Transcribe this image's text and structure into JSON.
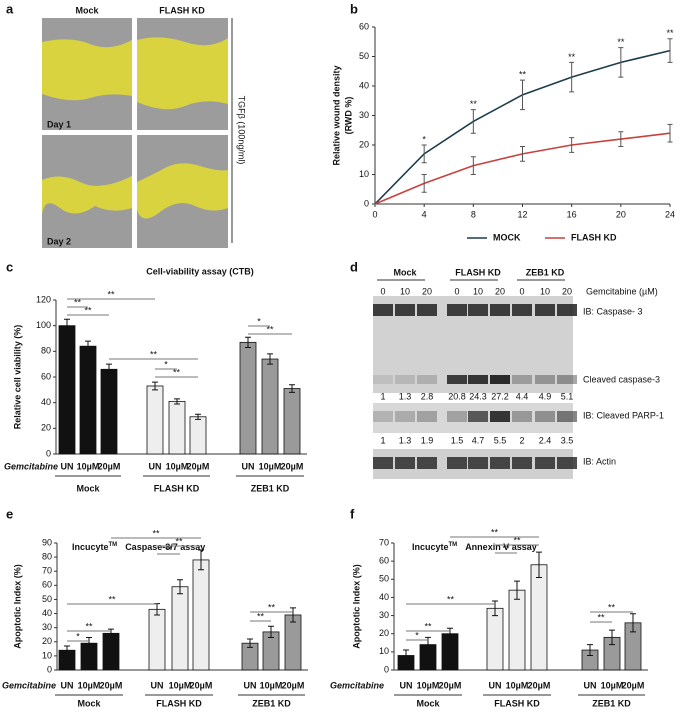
{
  "panel_labels": [
    "a",
    "b",
    "c",
    "d",
    "e",
    "f"
  ],
  "wound_assay": {
    "columns": [
      "Mock",
      "FLASH KD"
    ],
    "rows": [
      "Day 1",
      "Day 2"
    ],
    "treatment": "TGFβ (100ng/ml)"
  },
  "blot": {
    "groups": [
      "Mock",
      "FLASH KD",
      "ZEB1 KD"
    ],
    "doses": [
      "0",
      "10",
      "20"
    ],
    "treatment": "Gemcitabine (µM)",
    "labels": [
      "IB: Caspase- 3",
      "Cleaved caspase-3",
      "IB: Cleaved PARP-1",
      "IB: Actin"
    ],
    "quant": [
      [
        1,
        1.3,
        2.8,
        20.8,
        24.3,
        27.2,
        4.4,
        4.9,
        5.1
      ],
      [
        1,
        1.3,
        1.9,
        1.5,
        4.7,
        5.5,
        2,
        2.4,
        3.5
      ]
    ]
  },
  "chart_data": [
    {
      "type": "line",
      "ylabel": "Relative wound density",
      "ylabel_unit": "(RWD %)",
      "x": [
        0,
        4,
        8,
        12,
        16,
        20,
        24
      ],
      "xlim": [
        0,
        24
      ],
      "xticks": [
        0,
        4,
        8,
        12,
        16,
        20,
        24
      ],
      "ylim": [
        0,
        60
      ],
      "yticks": [
        0,
        10,
        20,
        30,
        40,
        50,
        60
      ],
      "series": [
        {
          "name": "MOCK",
          "color": "#1d3d4c",
          "values": [
            0,
            17,
            28,
            37,
            43,
            48,
            52
          ],
          "errors": [
            null,
            3,
            4,
            5,
            5,
            5,
            4
          ]
        },
        {
          "name": "FLASH KD",
          "color": "#c8413c",
          "values": [
            0,
            7,
            13,
            17,
            20,
            22,
            24
          ],
          "errors": [
            null,
            3,
            3,
            2.5,
            2.5,
            2.5,
            3
          ]
        }
      ],
      "annotations": [
        "*",
        "**",
        "**",
        "**",
        "**",
        "**"
      ]
    },
    {
      "type": "bar",
      "title": "Cell-viability assay (CTB)",
      "ylabel": "Relative cell viability (%)",
      "row_label": "Gemcitabine",
      "categories": [
        "UN",
        "10µM",
        "20µM"
      ],
      "ylim": [
        0,
        120
      ],
      "yticks": [
        0,
        20,
        40,
        60,
        80,
        100,
        120
      ],
      "series": [
        {
          "name": "Mock",
          "color": "#111111",
          "values": [
            100,
            84,
            66
          ],
          "errors": [
            5,
            4,
            4
          ]
        },
        {
          "name": "FLASH KD",
          "color": "#eeeeee",
          "values": [
            53,
            41,
            29
          ],
          "errors": [
            3,
            2,
            2
          ]
        },
        {
          "name": "ZEB1 KD",
          "color": "#9a9a9a",
          "values": [
            87,
            74,
            51
          ],
          "errors": [
            4,
            4,
            3
          ]
        }
      ],
      "significance": [
        "**",
        "**",
        "**",
        "**",
        "*",
        "**",
        "*",
        "**"
      ]
    },
    {
      "type": "bar",
      "title": "Incucyte",
      "title_sup": "TM",
      "title_2": "Caspase-3/7 assay",
      "ylabel": "Apoptotic Index (%)",
      "row_label": "Gemcitabine",
      "categories": [
        "UN",
        "10µM",
        "20µM"
      ],
      "ylim": [
        0,
        90
      ],
      "yticks": [
        0,
        10,
        20,
        30,
        40,
        50,
        60,
        70,
        80,
        90
      ],
      "series": [
        {
          "name": "Mock",
          "color": "#111111",
          "values": [
            14,
            19,
            26
          ],
          "errors": [
            3,
            4,
            3
          ]
        },
        {
          "name": "FLASH KD",
          "color": "#eeeeee",
          "values": [
            43,
            59,
            78
          ],
          "errors": [
            4,
            5,
            7
          ]
        },
        {
          "name": "ZEB1 KD",
          "color": "#9a9a9a",
          "values": [
            19,
            27,
            39
          ],
          "errors": [
            3,
            4,
            5
          ]
        }
      ],
      "significance": [
        "**",
        "**",
        "**",
        "**",
        "**",
        "*",
        "**",
        "**"
      ]
    },
    {
      "type": "bar",
      "title": "Incucyte",
      "title_sup": "TM",
      "title_2": "Annexin V assay",
      "ylabel": "Apoptotic Index (%)",
      "row_label": "Gemcitabine",
      "categories": [
        "UN",
        "10µM",
        "20µM"
      ],
      "ylim": [
        0,
        70
      ],
      "yticks": [
        0,
        10,
        20,
        30,
        40,
        50,
        60,
        70
      ],
      "series": [
        {
          "name": "Mock",
          "color": "#111111",
          "values": [
            8,
            14,
            20
          ],
          "errors": [
            3,
            4,
            3
          ]
        },
        {
          "name": "FLASH KD",
          "color": "#eeeeee",
          "values": [
            34,
            44,
            58
          ],
          "errors": [
            4,
            5,
            7
          ]
        },
        {
          "name": "ZEB1 KD",
          "color": "#9a9a9a",
          "values": [
            11,
            18,
            26
          ],
          "errors": [
            3,
            4,
            5
          ]
        }
      ],
      "significance": [
        "**",
        "**",
        "**",
        "**",
        "**",
        "*",
        "**",
        "**"
      ]
    }
  ]
}
